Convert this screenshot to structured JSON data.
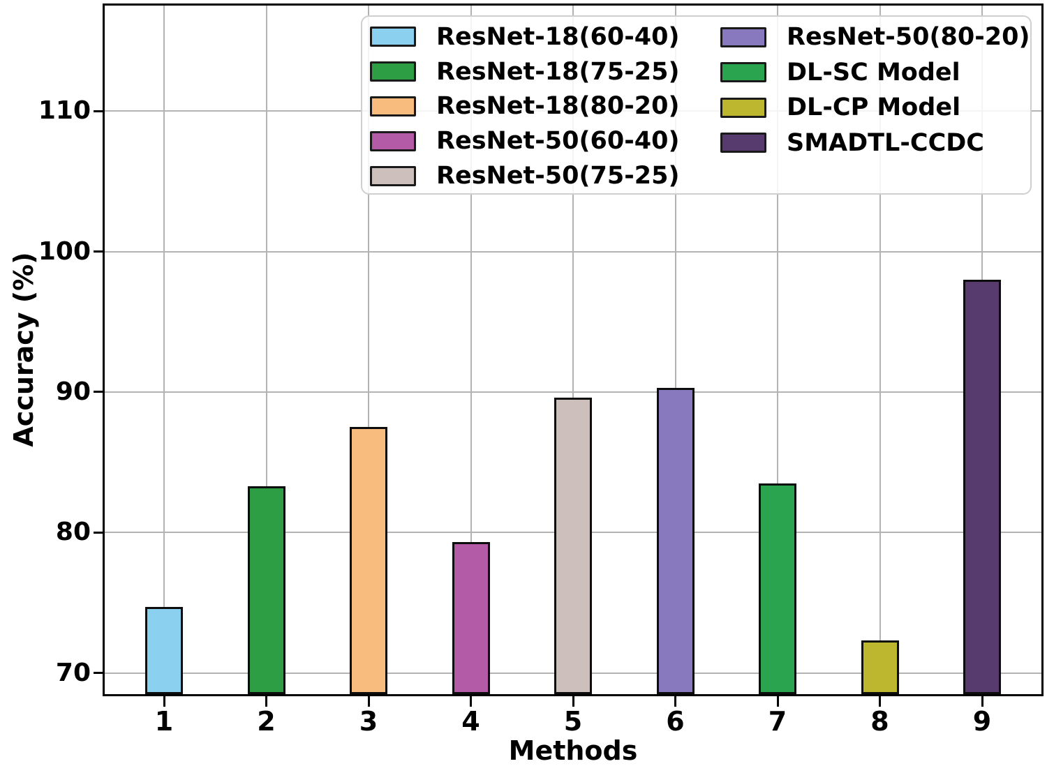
{
  "chart_data": {
    "type": "bar",
    "title": "",
    "xlabel": "Methods",
    "ylabel": "Accuracy (%)",
    "categories": [
      "1",
      "2",
      "3",
      "4",
      "5",
      "6",
      "7",
      "8",
      "9"
    ],
    "series": [
      {
        "label": "ResNet-18(60-40)",
        "color": "#8BD0EE",
        "value": 74.7
      },
      {
        "label": "ResNet-18(75-25)",
        "color": "#2E9E44",
        "value": 83.3
      },
      {
        "label": "ResNet-18(80-20)",
        "color": "#F8BC7F",
        "value": 87.5
      },
      {
        "label": "ResNet-50(60-40)",
        "color": "#B45BA7",
        "value": 79.3
      },
      {
        "label": "ResNet-50(75-25)",
        "color": "#CDC0BC",
        "value": 89.6
      },
      {
        "label": "ResNet-50(80-20)",
        "color": "#8878BD",
        "value": 90.3
      },
      {
        "label": "DL-SC Model",
        "color": "#2AA44F",
        "value": 83.5
      },
      {
        "label": "DL-CP Model",
        "color": "#BDB72F",
        "value": 72.3
      },
      {
        "label": "SMADTL-CCDC",
        "color": "#573A6E",
        "value": 98.0
      }
    ],
    "yticks": [
      70,
      80,
      90,
      100,
      110
    ],
    "ylim": [
      68.5,
      117.5
    ],
    "grid": true,
    "legend_position": "upper center",
    "legend_column_split": 5,
    "edge_color": "#0d0d0d",
    "grid_color": "#b3b3b3"
  }
}
